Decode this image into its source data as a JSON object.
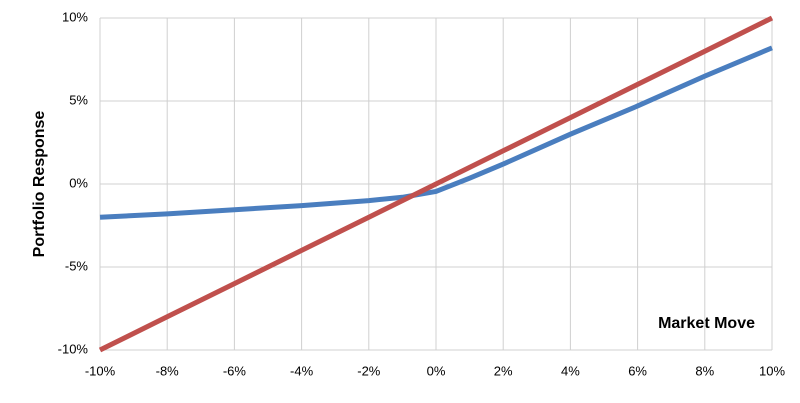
{
  "chart_data": {
    "type": "line",
    "y_label": "Portfolio Response",
    "annotation": "Market Move",
    "x": [
      -10,
      -8,
      -6,
      -4,
      -2,
      -1,
      0,
      1,
      2,
      4,
      6,
      8,
      10
    ],
    "series": [
      {
        "color": "#4a7ebf",
        "values": [
          -2.0,
          -1.8,
          -1.55,
          -1.3,
          -1.0,
          -0.8,
          -0.45,
          0.35,
          1.2,
          3.0,
          4.7,
          6.5,
          8.2
        ]
      },
      {
        "color": "#c0504d",
        "values": [
          -10,
          -8,
          -6,
          -4,
          -2,
          -1,
          0,
          1,
          2,
          4,
          6,
          8,
          10
        ]
      }
    ],
    "xlim": [
      -10,
      10
    ],
    "ylim": [
      -10,
      10
    ],
    "xticks": [
      {
        "value": -10,
        "label": "-10%"
      },
      {
        "value": -8,
        "label": "-8%"
      },
      {
        "value": -6,
        "label": "-6%"
      },
      {
        "value": -4,
        "label": "-4%"
      },
      {
        "value": -2,
        "label": "-2%"
      },
      {
        "value": 0,
        "label": "0%"
      },
      {
        "value": 2,
        "label": "2%"
      },
      {
        "value": 4,
        "label": "4%"
      },
      {
        "value": 6,
        "label": "6%"
      },
      {
        "value": 8,
        "label": "8%"
      },
      {
        "value": 10,
        "label": "10%"
      }
    ],
    "yticks": [
      {
        "value": -10,
        "label": "-10%"
      },
      {
        "value": -5,
        "label": "-5%"
      },
      {
        "value": 0,
        "label": "0%"
      },
      {
        "value": 5,
        "label": "5%"
      },
      {
        "value": 10,
        "label": "10%"
      }
    ],
    "grid": true
  }
}
